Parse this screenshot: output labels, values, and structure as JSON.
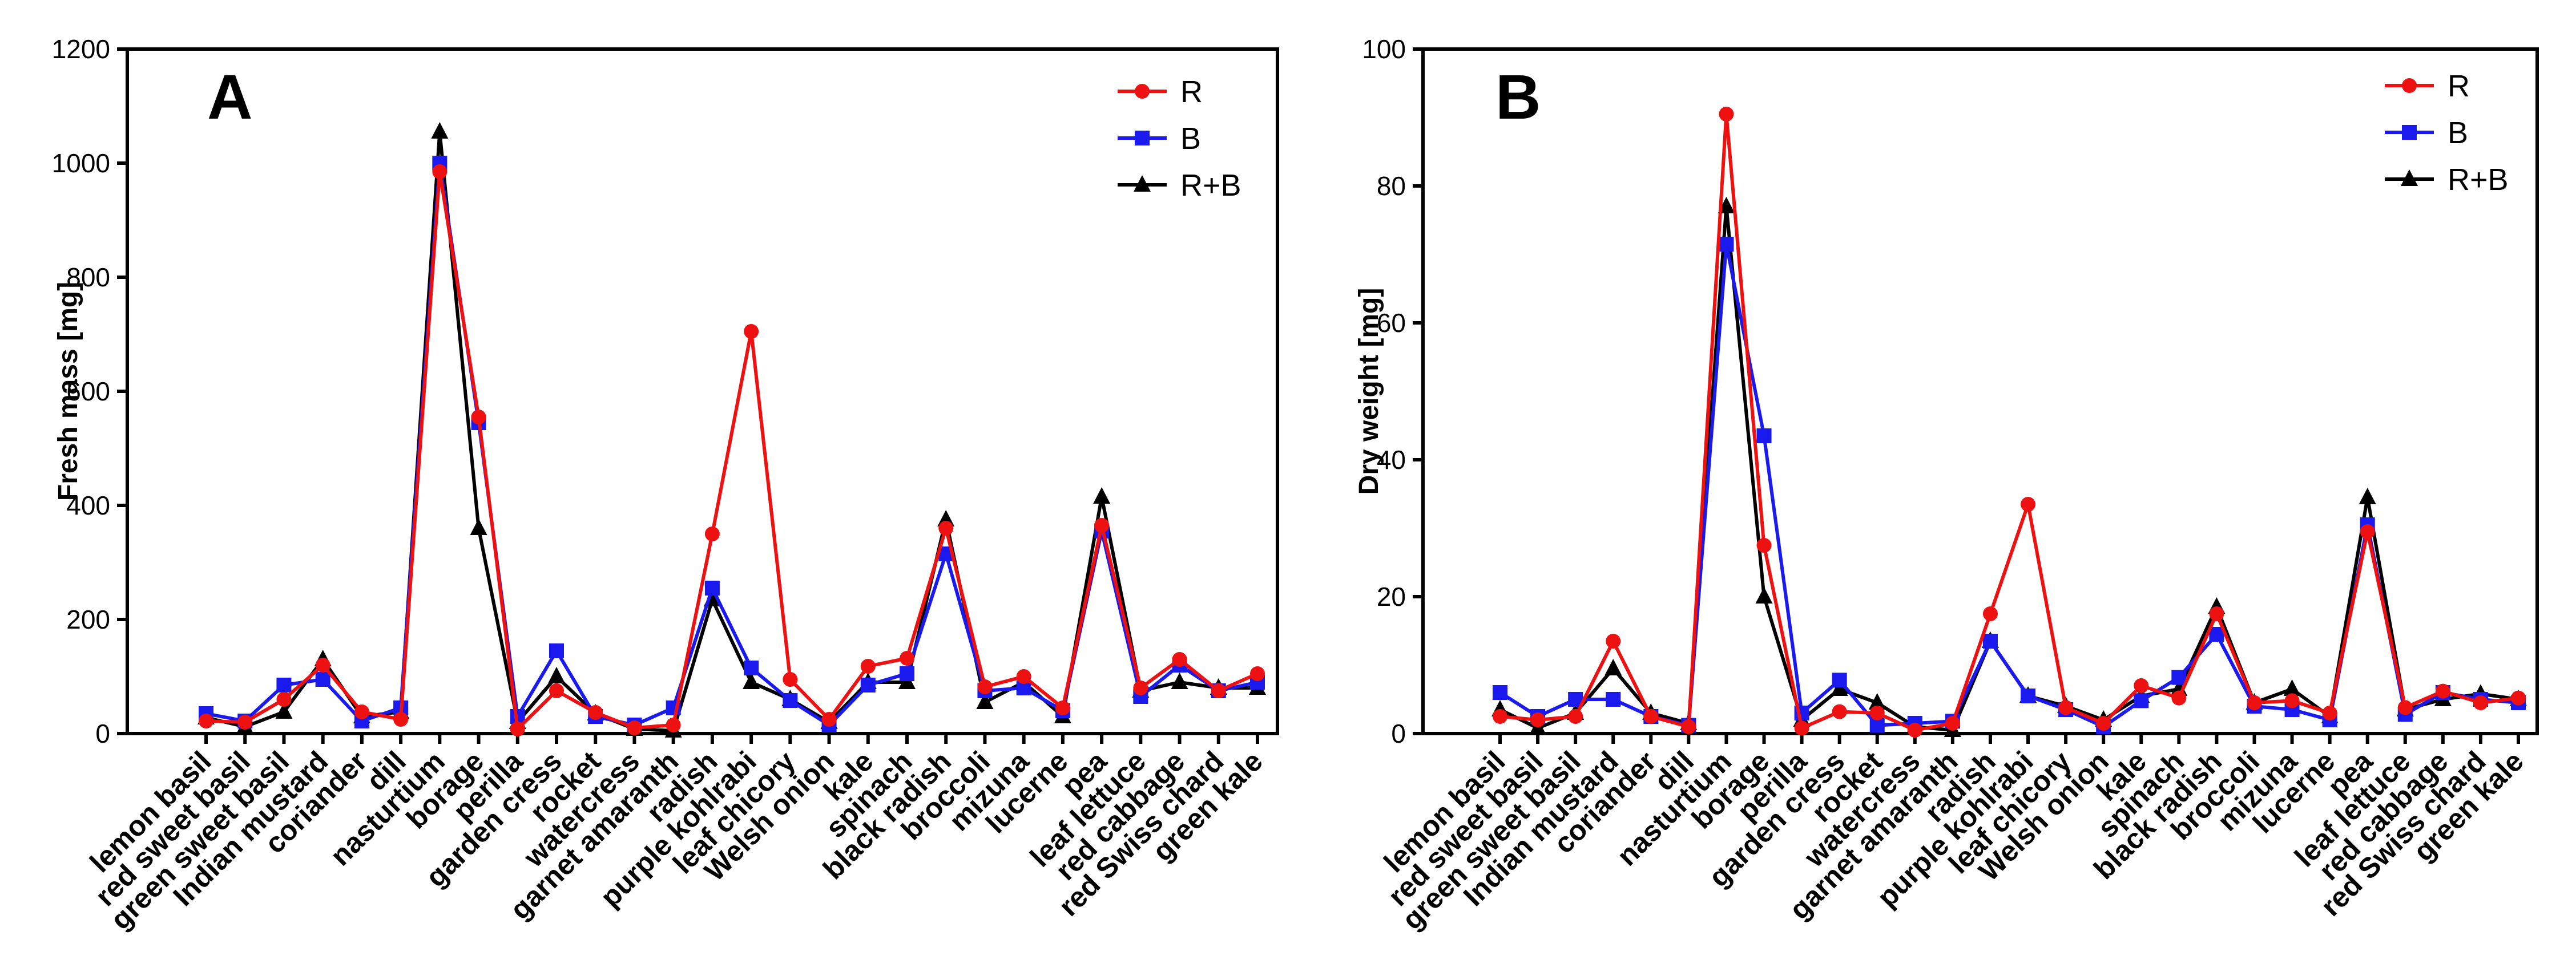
{
  "colors": {
    "R": "#ee1111",
    "B": "#1a1aee",
    "R+B": "#000000",
    "axis": "#000000"
  },
  "chart_data": [
    {
      "type": "line",
      "panel": "A",
      "title": "",
      "xlabel": "",
      "ylabel": "Fresh mass [mg]",
      "ylim": [
        0,
        1200
      ],
      "yticks": [
        0,
        200,
        400,
        600,
        800,
        1000,
        1200
      ],
      "legend_position": "top-right",
      "categories": [
        "lemon basil",
        "red sweet basil",
        "green sweet basil",
        "Indian mustard",
        "coriander",
        "dill",
        "nasturtium",
        "borage",
        "perilla",
        "garden cress",
        "rocket",
        "watercress",
        "garnet amaranth",
        "radish",
        "purple kohlrabi",
        "leaf chicory",
        "Welsh onion",
        "kale",
        "spinach",
        "black radish",
        "broccoli",
        "mizuna",
        "lucerne",
        "pea",
        "leaf lettuce",
        "red cabbage",
        "red Swiss chard",
        "green kale"
      ],
      "series": [
        {
          "name": "R",
          "marker": "circle",
          "values": [
            22,
            20,
            60,
            120,
            38,
            25,
            985,
            555,
            8,
            75,
            37,
            10,
            15,
            350,
            705,
            95,
            25,
            118,
            132,
            360,
            82,
            100,
            45,
            365,
            80,
            130,
            75,
            105
          ]
        },
        {
          "name": "B",
          "marker": "square",
          "values": [
            35,
            22,
            85,
            95,
            22,
            45,
            1000,
            545,
            30,
            145,
            30,
            15,
            45,
            255,
            115,
            58,
            15,
            85,
            105,
            315,
            75,
            80,
            40,
            355,
            65,
            120,
            75,
            90
          ]
        },
        {
          "name": "R+B",
          "marker": "triangle",
          "values": [
            28,
            12,
            38,
            130,
            30,
            38,
            1055,
            360,
            20,
            100,
            35,
            8,
            5,
            235,
            90,
            60,
            20,
            90,
            90,
            375,
            55,
            90,
            30,
            415,
            75,
            90,
            80,
            80
          ]
        }
      ]
    },
    {
      "type": "line",
      "panel": "B",
      "title": "",
      "xlabel": "",
      "ylabel": "Dry weight [mg]",
      "ylim": [
        0,
        100
      ],
      "yticks": [
        0,
        20,
        40,
        60,
        80,
        100
      ],
      "legend_position": "top-right",
      "categories": [
        "lemon basil",
        "red sweet basil",
        "green sweet basil",
        "Indian mustard",
        "coriander",
        "dill",
        "nasturtium",
        "borage",
        "perilla",
        "garden cress",
        "rocket",
        "watercress",
        "garnet amaranth",
        "radish",
        "purple kohlrabi",
        "leaf chicory",
        "Welsh onion",
        "kale",
        "spinach",
        "black radish",
        "broccoli",
        "mizuna",
        "lucerne",
        "pea",
        "leaf lettuce",
        "red cabbage",
        "red Swiss chard",
        "green kale"
      ],
      "series": [
        {
          "name": "R",
          "marker": "circle",
          "values": [
            2.5,
            2.0,
            2.5,
            13.5,
            2.5,
            1.0,
            90.5,
            27.5,
            0.8,
            3.2,
            3.0,
            0.5,
            1.5,
            17.5,
            33.5,
            3.8,
            1.5,
            7.0,
            5.2,
            17.5,
            4.5,
            4.8,
            3.0,
            29.5,
            3.8,
            6.2,
            4.5,
            5.2
          ]
        },
        {
          "name": "B",
          "marker": "square",
          "values": [
            6.0,
            2.5,
            5.0,
            5.0,
            2.5,
            1.2,
            71.5,
            43.5,
            3.0,
            7.8,
            1.2,
            1.5,
            1.8,
            13.5,
            5.5,
            3.5,
            1.0,
            4.8,
            8.2,
            14.5,
            4.0,
            3.5,
            2.0,
            30.5,
            2.8,
            6.0,
            5.0,
            4.5
          ]
        },
        {
          "name": "R+B",
          "marker": "triangle",
          "values": [
            3.5,
            0.8,
            3.0,
            9.5,
            3.0,
            1.5,
            77.0,
            20.0,
            2.0,
            6.5,
            4.5,
            1.0,
            0.5,
            13.5,
            5.5,
            4.0,
            2.0,
            5.5,
            6.5,
            18.5,
            4.5,
            6.5,
            2.5,
            34.5,
            3.5,
            5.0,
            5.8,
            5.0
          ]
        }
      ]
    }
  ]
}
